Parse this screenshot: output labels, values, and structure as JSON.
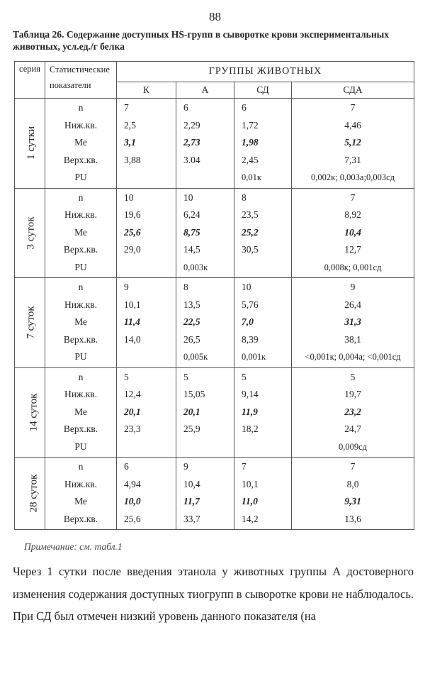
{
  "page_number": "88",
  "caption": "Таблица 26. Содержание доступных HS-групп в сыворотке крови экспериментальных животных, усл.ед./г белка",
  "header": {
    "seria": "серия",
    "stat": "Статистические показатели",
    "groups_title": "ГРУППЫ ЖИВОТНЫХ",
    "groups": [
      "К",
      "А",
      "СД",
      "СДА"
    ]
  },
  "blocks": [
    {
      "series": "1 сутки",
      "stats": [
        "n",
        "Ниж.кв.",
        "Ме",
        "Верх.кв.",
        "PU"
      ],
      "K": [
        "7",
        "2,5",
        "3,1",
        "3,88",
        ""
      ],
      "A": [
        "6",
        "2,29",
        "2,73",
        "3.04",
        ""
      ],
      "SD": [
        "6",
        "1,72",
        "1,98",
        "2,45",
        "0,01к"
      ],
      "SDA": [
        "7",
        "4,46",
        "5,12",
        "7,31",
        "0,002к; 0,003а;0,003сд"
      ]
    },
    {
      "series": "3 суток",
      "stats": [
        "n",
        "Ниж.кв.",
        "Ме",
        "Верх.кв.",
        "PU"
      ],
      "K": [
        "10",
        "19,6",
        "25,6",
        "29,0",
        ""
      ],
      "A": [
        "10",
        "6,24",
        "8,75",
        "14,5",
        "0,003к"
      ],
      "SD": [
        "8",
        "23,5",
        "25,2",
        "30,5",
        ""
      ],
      "SDA": [
        "7",
        "8,92",
        "10,4",
        "12,7",
        "0,008к; 0,001сд"
      ]
    },
    {
      "series": "7 суток",
      "stats": [
        "n",
        "Ниж.кв.",
        "Ме",
        "Верх.кв.",
        "PU"
      ],
      "K": [
        "9",
        "10,1",
        "11,4",
        "14,0",
        ""
      ],
      "A": [
        "8",
        "13,5",
        "22,5",
        "26,5",
        "0,005к"
      ],
      "SD": [
        "10",
        "5,76",
        "7,0",
        "8,39",
        "0,001к"
      ],
      "SDA": [
        "9",
        "26,4",
        "31,3",
        "38,1",
        "<0,001к; 0,004а; <0,001сд"
      ]
    },
    {
      "series": "14 суток",
      "stats": [
        "n",
        "Ниж.кв.",
        "Ме",
        "Верх.кв.",
        "PU"
      ],
      "K": [
        "5",
        "12,4",
        "20,1",
        "23,3",
        ""
      ],
      "A": [
        "5",
        "15,05",
        "20,1",
        "25,9",
        ""
      ],
      "SD": [
        "5",
        "9,14",
        "11,9",
        "18,2",
        ""
      ],
      "SDA": [
        "5",
        "19,7",
        "23,2",
        "24,7",
        "0,009сд"
      ]
    },
    {
      "series": "28 суток",
      "stats": [
        "n",
        "Ниж.кв.",
        "Ме",
        "Верх.кв."
      ],
      "K": [
        "6",
        "4,94",
        "10,0",
        "25,6"
      ],
      "A": [
        "9",
        "10,4",
        "11,7",
        "33,7"
      ],
      "SD": [
        "7",
        "10,1",
        "11,0",
        "14,2"
      ],
      "SDA": [
        "7",
        "8,0",
        "9,31",
        "13,6"
      ]
    }
  ],
  "note": "Примечание: см. табл.1",
  "paragraph": "Через 1 сутки после введения этанола у животных группы А достоверного изменения содержания доступных тиогрупп в сыворотке крови не наблюдалось. При СД был отмечен низкий уровень данного показателя (на"
}
